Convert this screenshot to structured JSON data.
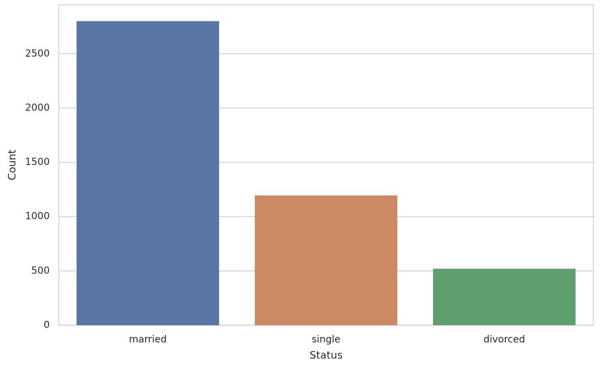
{
  "chart_data": {
    "type": "bar",
    "x_label": "Status",
    "y_label": "Count",
    "categories": [
      "married",
      "single",
      "divorced"
    ],
    "values": [
      2800,
      1195,
      520
    ],
    "colors": [
      "#5875a4",
      "#cc8963",
      "#5f9e6e"
    ],
    "ylim": [
      0,
      2950
    ],
    "yticks": [
      0,
      500,
      1000,
      1500,
      2000,
      2500
    ],
    "grid": true
  }
}
